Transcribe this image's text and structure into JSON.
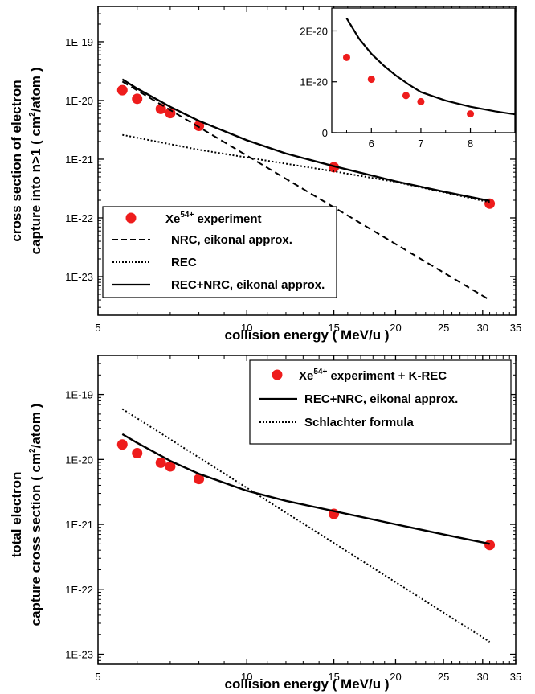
{
  "colors": {
    "experiment": "#ee1c1c",
    "line": "#000000",
    "background": "#ffffff"
  },
  "chart_data": [
    {
      "type": "line",
      "xlabel": "collision energy ( MeV/u )",
      "ylabel_line1": "cross section of electron",
      "ylabel_line2_pre": "capture into n>1 ( cm",
      "ylabel_line2_sup": "2",
      "ylabel_line2_post": "/atom )",
      "x_scale": "log",
      "y_scale": "log",
      "xlim": [
        5,
        35
      ],
      "ylim": [
        2.2e-24,
        4e-19
      ],
      "x_ticks": [
        "5",
        "10",
        "15",
        "20",
        "25",
        "30",
        "35"
      ],
      "y_ticks": [
        "1E-23",
        "1E-22",
        "1E-21",
        "1E-20",
        "1E-19"
      ],
      "legend_position": "bottom-left",
      "legend": [
        {
          "marker": "circle",
          "text_pre": "Xe",
          "text_sup": "54+",
          "text_post": " experiment"
        },
        {
          "style": "dashed",
          "text": "NRC, eikonal approx."
        },
        {
          "style": "dotted",
          "text": "REC"
        },
        {
          "style": "solid",
          "text": "REC+NRC, eikonal approx."
        }
      ],
      "series": [
        {
          "style": "marker",
          "x": [
            5.6,
            6.0,
            6.7,
            7.0,
            8.0,
            15.0,
            31.0
          ],
          "y": [
            1.5e-20,
            1.07e-20,
            7.2e-21,
            6.1e-21,
            3.7e-21,
            7.3e-22,
            1.75e-22
          ]
        },
        {
          "style": "dashed",
          "x": [
            5.6,
            31.0
          ],
          "y": [
            2.1e-20,
            4e-24
          ]
        },
        {
          "style": "dotted",
          "x": [
            5.6,
            8.0,
            10.0,
            15.0,
            20.0,
            31.0
          ],
          "y": [
            2.6e-21,
            1.45e-21,
            1.07e-21,
            6.2e-22,
            4.1e-22,
            1.85e-22
          ]
        },
        {
          "style": "solid",
          "x": [
            5.6,
            6.0,
            7.0,
            8.0,
            10.0,
            12.0,
            15.0,
            20.0,
            25.0,
            31.0
          ],
          "y": [
            2.3e-20,
            1.6e-20,
            7.8e-21,
            4.5e-21,
            2.1e-21,
            1.25e-21,
            7.6e-22,
            4.2e-22,
            2.8e-22,
            1.95e-22
          ]
        }
      ],
      "inset": {
        "type": "line",
        "x_scale": "linear",
        "y_scale": "linear",
        "xlim": [
          5.2,
          8.9
        ],
        "ylim": [
          0,
          2.45e-20
        ],
        "x_ticks": [
          "6",
          "7",
          "8"
        ],
        "y_ticks": [
          "0",
          "1E-20",
          "2E-20"
        ],
        "series": [
          {
            "style": "marker",
            "x": [
              5.5,
              6.0,
              6.7,
              7.0,
              8.0
            ],
            "y": [
              1.48e-20,
              1.05e-20,
              7.3e-21,
              6.1e-21,
              3.7e-21
            ]
          },
          {
            "style": "solid",
            "x": [
              5.5,
              5.75,
              6.0,
              6.25,
              6.5,
              6.75,
              7.0,
              7.5,
              8.0,
              8.5,
              8.9
            ],
            "y": [
              2.25e-20,
              1.85e-20,
              1.55e-20,
              1.32e-20,
              1.12e-20,
              9.5e-21,
              8e-21,
              6.3e-21,
              5.1e-21,
              4.2e-21,
              3.6e-21
            ]
          }
        ]
      }
    },
    {
      "type": "line",
      "xlabel": "collision energy ( MeV/u )",
      "ylabel_line1": "total electron",
      "ylabel_line2_pre": "capture cross section ( cm",
      "ylabel_line2_sup": "2",
      "ylabel_line2_post": "/atom )",
      "x_scale": "log",
      "y_scale": "log",
      "xlim": [
        5,
        35
      ],
      "ylim": [
        7e-24,
        4e-19
      ],
      "x_ticks": [
        "5",
        "10",
        "15",
        "20",
        "25",
        "30",
        "35"
      ],
      "y_ticks": [
        "1E-23",
        "1E-22",
        "1E-21",
        "1E-20",
        "1E-19"
      ],
      "legend_position": "top-right",
      "legend": [
        {
          "marker": "circle",
          "text_pre": "Xe",
          "text_sup": "54+",
          "text_post": " experiment + K-REC"
        },
        {
          "style": "solid",
          "text": "REC+NRC, eikonal approx."
        },
        {
          "style": "dotted",
          "text": "Schlachter formula"
        }
      ],
      "series": [
        {
          "style": "marker",
          "x": [
            5.6,
            6.0,
            6.7,
            7.0,
            8.0,
            15.0,
            31.0
          ],
          "y": [
            1.7e-20,
            1.25e-20,
            8.9e-21,
            7.8e-21,
            5e-21,
            1.45e-21,
            4.8e-22
          ]
        },
        {
          "style": "solid",
          "x": [
            5.6,
            6.0,
            7.0,
            8.0,
            10.0,
            12.0,
            15.0,
            20.0,
            25.0,
            31.0
          ],
          "y": [
            2.45e-20,
            1.8e-20,
            9.5e-21,
            6e-21,
            3.3e-21,
            2.3e-21,
            1.6e-21,
            1e-21,
            7e-22,
            5e-22
          ]
        },
        {
          "style": "dotted",
          "x": [
            5.6,
            31.0
          ],
          "y": [
            6e-20,
            1.55e-23
          ]
        }
      ]
    }
  ]
}
